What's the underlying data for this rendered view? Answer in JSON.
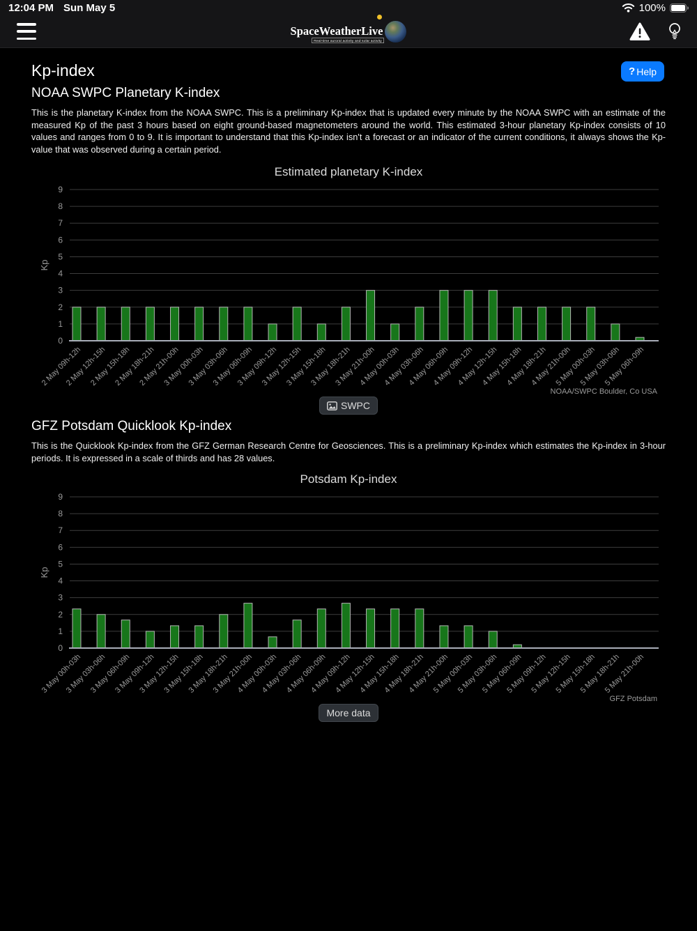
{
  "status_bar": {
    "time": "12:04 PM",
    "date": "Sun May 5",
    "battery_pct": "100%"
  },
  "header": {
    "logo_title": "SpaceWeatherLive",
    "logo_tagline": "Real-time auroral activity and solar activity"
  },
  "page": {
    "title": "Kp-index",
    "help_label": "Help",
    "help_mark": "?"
  },
  "section_swpc": {
    "heading": "NOAA SWPC Planetary K-index",
    "body": "This is the planetary K-index from the NOAA SWPC. This is a preliminary Kp-index that is updated every minute by the NOAA SWPC with an estimate of the measured Kp of the past 3 hours based on eight ground-based magnetometers around the world. This estimated 3-hour planetary Kp-index consists of 10 values and ranges from 0 to 9. It is important to understand that this Kp-index isn't a forecast or an indicator of the current conditions, it always shows the Kp-value that was observed during a certain period.",
    "button_label": "SWPC"
  },
  "section_gfz": {
    "heading": "GFZ Potsdam Quicklook Kp-index",
    "body": "This is the Quicklook Kp-index from the GFZ German Research Centre for Geosciences. This is a preliminary Kp-index which estimates the Kp-index in 3-hour periods. It is expressed in a scale of thirds and has 28 values.",
    "button_label": "More data"
  },
  "chart_data": [
    {
      "type": "bar",
      "title": "Estimated planetary K-index",
      "ylabel": "Kp",
      "ylim": [
        0,
        9
      ],
      "grid": true,
      "credit": "NOAA/SWPC Boulder, Co USA",
      "bar_color": "#17761a",
      "categories": [
        "2 May 09h-12h",
        "2 May 12h-15h",
        "2 May 15h-18h",
        "2 May 18h-21h",
        "2 May 21h-00h",
        "3 May 00h-03h",
        "3 May 03h-06h",
        "3 May 06h-09h",
        "3 May 09h-12h",
        "3 May 12h-15h",
        "3 May 15h-18h",
        "3 May 18h-21h",
        "3 May 21h-00h",
        "4 May 00h-03h",
        "4 May 03h-06h",
        "4 May 06h-09h",
        "4 May 09h-12h",
        "4 May 12h-15h",
        "4 May 15h-18h",
        "4 May 18h-21h",
        "4 May 21h-00h",
        "5 May 00h-03h",
        "5 May 03h-06h",
        "5 May 06h-09h"
      ],
      "values": [
        2,
        2,
        2,
        2,
        2,
        2,
        2,
        2,
        1,
        2,
        1,
        2,
        3,
        1,
        2,
        3,
        3,
        3,
        2,
        2,
        2,
        2,
        1,
        0.2
      ]
    },
    {
      "type": "bar",
      "title": "Potsdam Kp-index",
      "ylabel": "Kp",
      "ylim": [
        0,
        9
      ],
      "grid": true,
      "credit": "GFZ Potsdam",
      "bar_color": "#17761a",
      "categories": [
        "3 May 00h-03h",
        "3 May 03h-06h",
        "3 May 06h-09h",
        "3 May 09h-12h",
        "3 May 12h-15h",
        "3 May 15h-18h",
        "3 May 18h-21h",
        "3 May 21h-00h",
        "4 May 00h-03h",
        "4 May 03h-06h",
        "4 May 06h-09h",
        "4 May 09h-12h",
        "4 May 12h-15h",
        "4 May 15h-18h",
        "4 May 18h-21h",
        "4 May 21h-00h",
        "5 May 00h-03h",
        "5 May 03h-06h",
        "5 May 06h-09h",
        "5 May 09h-12h",
        "5 May 12h-15h",
        "5 May 15h-18h",
        "5 May 18h-21h",
        "5 May 21h-00h"
      ],
      "values": [
        2.33,
        2,
        1.67,
        1,
        1.33,
        1.33,
        2,
        2.67,
        0.67,
        1.67,
        2.33,
        2.67,
        2.33,
        2.33,
        2.33,
        1.33,
        1.33,
        1,
        0.2,
        0,
        0,
        0,
        0,
        0
      ]
    }
  ]
}
